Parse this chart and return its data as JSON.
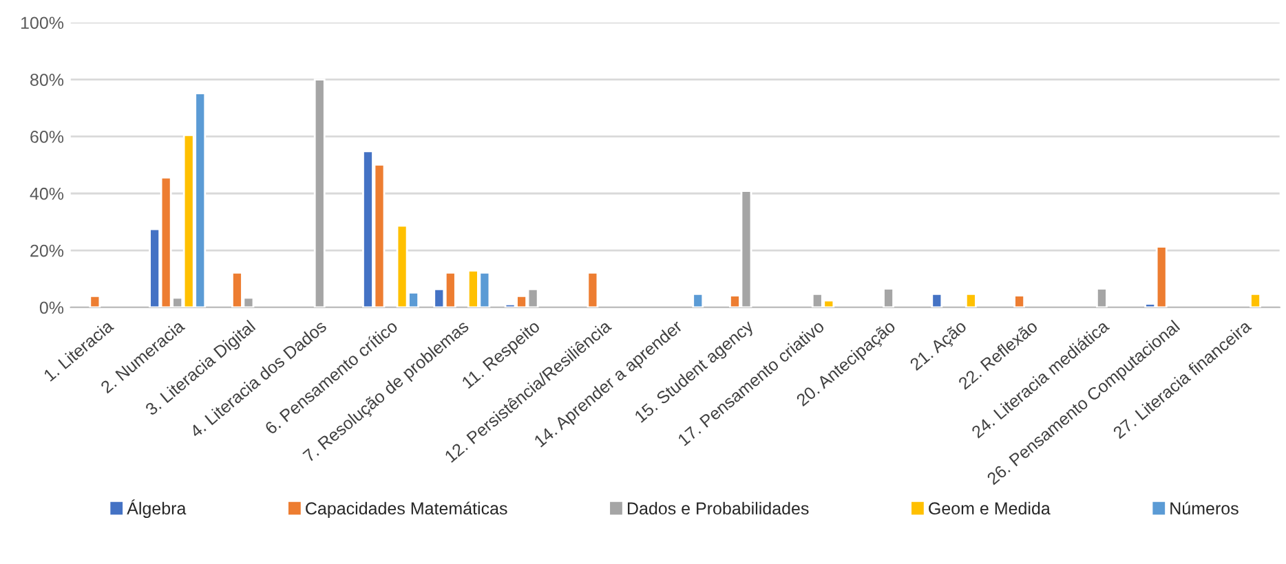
{
  "chart_data": {
    "type": "bar",
    "categories": [
      "1. Literacia",
      "2. Numeracia",
      "3. Literacia Digital",
      "4. Literacia dos Dados",
      "6. Pensamento crítico",
      "7. Resolução de problemas",
      "11. Respeito",
      "12. Persistência/Resiliência",
      "14. Aprender a aprender",
      "15. Student agency",
      "17. Pensamento criativo",
      "20. Antecipação",
      "21. Ação",
      "22. Reflexão",
      "24. Literacia mediática",
      "26. Pensamento Computacional",
      "27. Literacia financeira"
    ],
    "series": [
      {
        "name": "Álgebra",
        "color": "#4472c4",
        "values": [
          null,
          27.5,
          null,
          null,
          54.8,
          6.4,
          1.1,
          null,
          null,
          null,
          null,
          null,
          4.7,
          null,
          null,
          1.3,
          null
        ]
      },
      {
        "name": "Capacidades Matemáticas",
        "color": "#ed7d31",
        "values": [
          4.0,
          45.6,
          12.2,
          null,
          50.1,
          12.2,
          4.0,
          12.2,
          null,
          4.2,
          null,
          null,
          null,
          4.2,
          null,
          21.3,
          null
        ]
      },
      {
        "name": "Dados e Probabilidades",
        "color": "#a5a5a5",
        "values": [
          null,
          3.4,
          3.4,
          80.0,
          null,
          null,
          6.4,
          null,
          null,
          40.9,
          4.7,
          6.6,
          null,
          null,
          6.6,
          null,
          null
        ]
      },
      {
        "name": "Geom e Medida",
        "color": "#ffc000",
        "values": [
          null,
          60.5,
          null,
          null,
          28.7,
          12.9,
          null,
          null,
          null,
          null,
          2.4,
          null,
          4.7,
          null,
          null,
          null,
          4.7
        ]
      },
      {
        "name": "Números",
        "color": "#5b9bd5",
        "values": [
          null,
          75.2,
          null,
          null,
          5.2,
          12.2,
          null,
          null,
          4.7,
          null,
          null,
          null,
          null,
          null,
          null,
          null,
          null
        ]
      }
    ],
    "ylim": [
      0,
      100
    ],
    "yticks": [
      {
        "value": 0,
        "label": "0%"
      },
      {
        "value": 20,
        "label": "20%"
      },
      {
        "value": 40,
        "label": "40%"
      },
      {
        "value": 60,
        "label": "60%"
      },
      {
        "value": 80,
        "label": "80%"
      },
      {
        "value": 100,
        "label": "100%"
      }
    ],
    "grid": "y",
    "legend": "bottom"
  }
}
